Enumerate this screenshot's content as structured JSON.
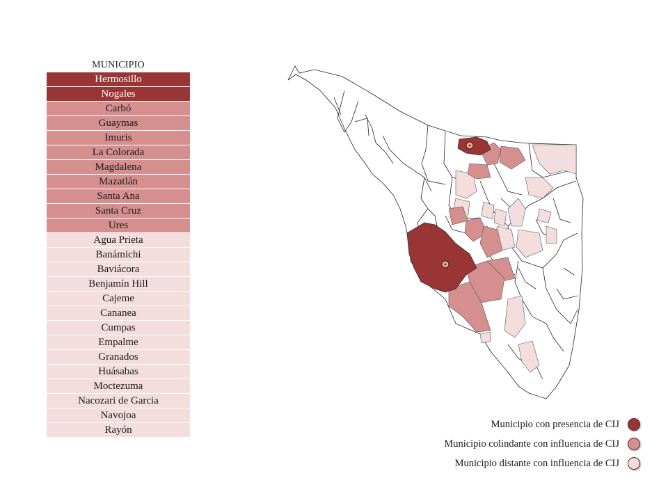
{
  "table": {
    "header": "MUNICIPIO",
    "rows": [
      {
        "name": "Hermosillo",
        "category": "presence"
      },
      {
        "name": "Nogales",
        "category": "presence"
      },
      {
        "name": "Carbó",
        "category": "adjacent"
      },
      {
        "name": "Guaymas",
        "category": "adjacent"
      },
      {
        "name": "Imuris",
        "category": "adjacent"
      },
      {
        "name": "La Colorada",
        "category": "adjacent"
      },
      {
        "name": "Magdalena",
        "category": "adjacent"
      },
      {
        "name": "Mazatlán",
        "category": "adjacent"
      },
      {
        "name": "Santa Ana",
        "category": "adjacent"
      },
      {
        "name": "Santa Cruz",
        "category": "adjacent"
      },
      {
        "name": "Ures",
        "category": "adjacent"
      },
      {
        "name": "Agua Prieta",
        "category": "distant"
      },
      {
        "name": "Banámichi",
        "category": "distant"
      },
      {
        "name": "Baviácora",
        "category": "distant"
      },
      {
        "name": "Benjamín Hill",
        "category": "distant"
      },
      {
        "name": "Cajeme",
        "category": "distant"
      },
      {
        "name": "Cananea",
        "category": "distant"
      },
      {
        "name": "Cumpas",
        "category": "distant"
      },
      {
        "name": "Empalme",
        "category": "distant"
      },
      {
        "name": "Granados",
        "category": "distant"
      },
      {
        "name": "Huásabas",
        "category": "distant"
      },
      {
        "name": "Moctezuma",
        "category": "distant"
      },
      {
        "name": "Nacozari de Garcia",
        "category": "distant"
      },
      {
        "name": "Navojoa",
        "category": "distant"
      },
      {
        "name": "Rayón",
        "category": "distant"
      }
    ]
  },
  "colors": {
    "presence": "#993535",
    "adjacent": "#d58f8f",
    "distant": "#f4dddd",
    "outline": "#222222"
  },
  "legend": {
    "presence_label": "Municipio con presencia de CIJ",
    "adjacent_label": "Municipio colindante con influencia de CIJ",
    "distant_label": "Municipio distante con influencia de CIJ"
  },
  "map": {
    "cij_marker_icon": "cij-center-marker"
  }
}
